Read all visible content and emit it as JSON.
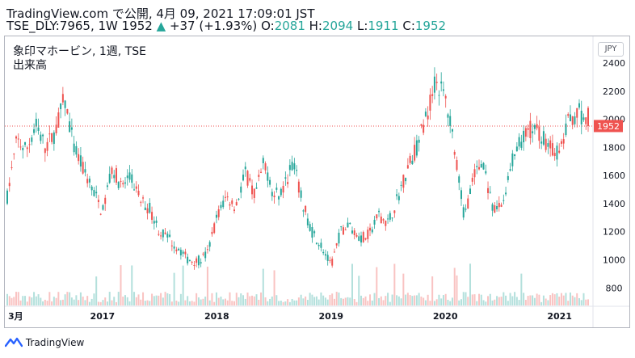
{
  "header": {
    "line1": "TradingView.com で公開, 4月 09, 2021 17:09:01 JST",
    "symbol_line": "TSE_DLY:7965, 1W 1952",
    "change": "+37 (+1.93%)",
    "o_label": "O:",
    "o_value": "2081",
    "h_label": "H:",
    "h_value": "2094",
    "l_label": "L:",
    "l_value": "1911",
    "c_label": "C:",
    "c_value": "1952"
  },
  "chart_title": "象印マホービン, 1週, TSE",
  "volume_label": "出来高",
  "currency": "JPY",
  "footer": {
    "brand": "TradingView"
  },
  "colors": {
    "up": "#26a69a",
    "down": "#ef5350",
    "price_line": "#ef5350"
  },
  "chart_data": {
    "type": "candlestick",
    "symbol": "TSE_DLY:7965",
    "interval": "1W",
    "title": "象印マホービン, 1週, TSE",
    "y_ticks": [
      800,
      1000,
      1200,
      1400,
      1600,
      1800,
      2000,
      2200,
      2400
    ],
    "x_ticks": [
      "3月",
      "2017",
      "2018",
      "2019",
      "2020",
      "2021"
    ],
    "ylim": [
      675,
      2590
    ],
    "last_price": 1952,
    "last_bar": {
      "open": 2081,
      "high": 2094,
      "low": 1911,
      "close": 1952
    },
    "price_path": [
      [
        "2016-03",
        1450
      ],
      [
        "2016-04",
        1850
      ],
      [
        "2016-05",
        1780
      ],
      [
        "2016-06",
        1960
      ],
      [
        "2016-07",
        1800
      ],
      [
        "2016-08",
        1900
      ],
      [
        "2016-09",
        2150
      ],
      [
        "2016-10",
        1800
      ],
      [
        "2016-11",
        1640
      ],
      [
        "2016-12",
        1500
      ],
      [
        "2017-01",
        1330
      ],
      [
        "2017-02",
        1660
      ],
      [
        "2017-03",
        1520
      ],
      [
        "2017-04",
        1580
      ],
      [
        "2017-05",
        1420
      ],
      [
        "2017-06",
        1360
      ],
      [
        "2017-07",
        1200
      ],
      [
        "2017-08",
        1150
      ],
      [
        "2017-09",
        1080
      ],
      [
        "2017-10",
        1000
      ],
      [
        "2017-11",
        990
      ],
      [
        "2017-12",
        1040
      ],
      [
        "2018-01",
        1300
      ],
      [
        "2018-02",
        1450
      ],
      [
        "2018-03",
        1380
      ],
      [
        "2018-04",
        1620
      ],
      [
        "2018-05",
        1450
      ],
      [
        "2018-06",
        1700
      ],
      [
        "2018-07",
        1450
      ],
      [
        "2018-08",
        1500
      ],
      [
        "2018-09",
        1700
      ],
      [
        "2018-10",
        1400
      ],
      [
        "2018-11",
        1200
      ],
      [
        "2018-12",
        1100
      ],
      [
        "2019-01",
        950
      ],
      [
        "2019-02",
        1200
      ],
      [
        "2019-03",
        1250
      ],
      [
        "2019-04",
        1150
      ],
      [
        "2019-05",
        1180
      ],
      [
        "2019-06",
        1320
      ],
      [
        "2019-07",
        1260
      ],
      [
        "2019-08",
        1440
      ],
      [
        "2019-09",
        1650
      ],
      [
        "2019-10",
        1800
      ],
      [
        "2019-11",
        2020
      ],
      [
        "2019-12",
        2280
      ],
      [
        "2020-01",
        2150
      ],
      [
        "2020-02",
        1800
      ],
      [
        "2020-03",
        1300
      ],
      [
        "2020-04",
        1600
      ],
      [
        "2020-05",
        1700
      ],
      [
        "2020-06",
        1330
      ],
      [
        "2020-07",
        1400
      ],
      [
        "2020-08",
        1700
      ],
      [
        "2020-09",
        1850
      ],
      [
        "2020-10",
        1930
      ],
      [
        "2020-11",
        1900
      ],
      [
        "2020-12",
        1800
      ],
      [
        "2021-01",
        1750
      ],
      [
        "2021-02",
        2000
      ],
      [
        "2021-03",
        2060
      ],
      [
        "2021-04",
        1952
      ]
    ]
  }
}
